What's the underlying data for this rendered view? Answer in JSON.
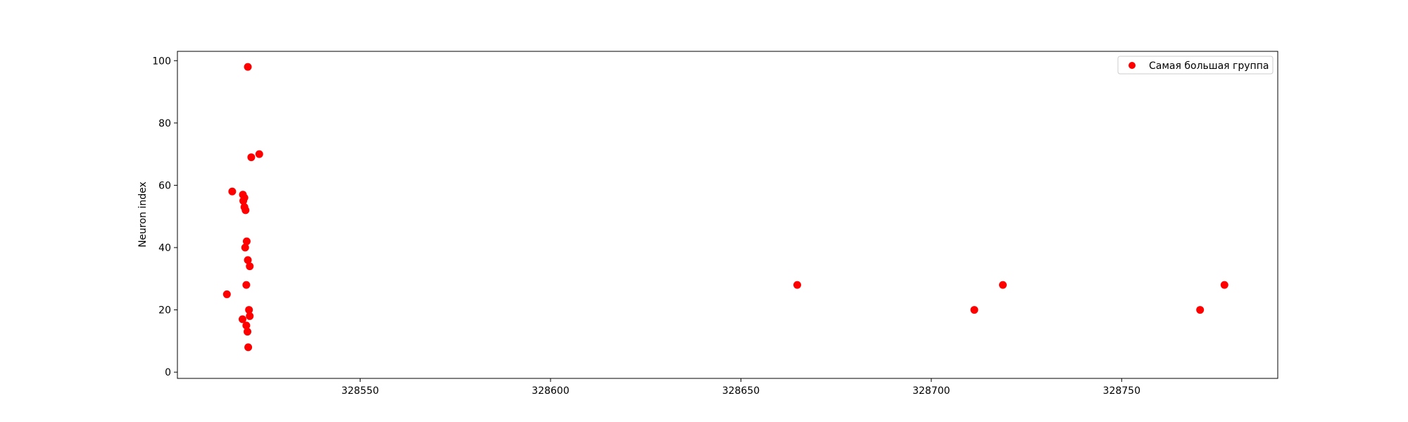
{
  "chart_data": {
    "type": "scatter",
    "title": "",
    "xlabel": "",
    "ylabel": "Neuron index",
    "xlim": [
      328502.0,
      328791.0
    ],
    "ylim": [
      -2,
      103
    ],
    "xticks": [
      328550,
      328600,
      328650,
      328700,
      328750
    ],
    "xtick_labels": [
      "328550",
      "328600",
      "328650",
      "328700",
      "328750"
    ],
    "yticks": [
      0,
      20,
      40,
      60,
      80,
      100
    ],
    "ytick_labels": [
      "0",
      "20",
      "40",
      "60",
      "80",
      "100"
    ],
    "grid": false,
    "legend_position": "top-right",
    "series": [
      {
        "name": "Самая большая группа",
        "color": "#ff0000",
        "marker": "circle",
        "x": [
          328520.5,
          328523.5,
          328516.4,
          328519.2,
          328519.6,
          328519.3,
          328519.6,
          328519.9,
          328521.4,
          328520.2,
          328519.8,
          328515.0,
          328520.5,
          328521.0,
          328520.1,
          328520.8,
          328521.0,
          328519.1,
          328520.1,
          328520.4,
          328520.6,
          328664.8,
          328711.3,
          328718.8,
          328770.6,
          328777.0
        ],
        "y": [
          98,
          70,
          58,
          57,
          56,
          55,
          53,
          52,
          69,
          42,
          40,
          25,
          36,
          34,
          28,
          20,
          18,
          17,
          15,
          13,
          8,
          28,
          20,
          28,
          20,
          28
        ]
      }
    ],
    "legend": [
      {
        "label": "Самая большая группа",
        "color": "#ff0000"
      }
    ]
  }
}
